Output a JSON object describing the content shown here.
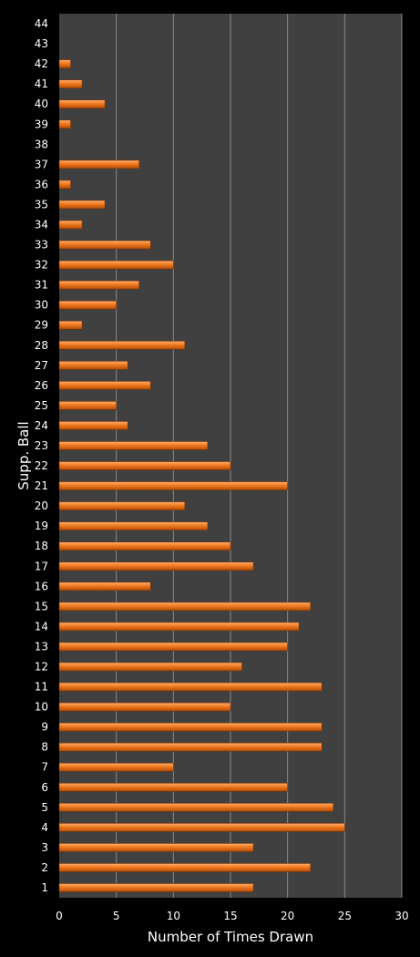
{
  "chart_data": {
    "type": "bar",
    "orientation": "horizontal",
    "xlabel": "Number of Times Drawn",
    "ylabel": "Supp. Ball",
    "xlim": [
      0,
      30
    ],
    "xticks": [
      0,
      5,
      10,
      15,
      20,
      25,
      30
    ],
    "grid": true,
    "legend": "none",
    "colors": {
      "bar": "#f07a20",
      "plot_background": "#404040",
      "page_background": "#000000",
      "gridline": "#8a8a8a",
      "text": "#ffffff"
    },
    "categories": [
      "1",
      "2",
      "3",
      "4",
      "5",
      "6",
      "7",
      "8",
      "9",
      "10",
      "11",
      "12",
      "13",
      "14",
      "15",
      "16",
      "17",
      "18",
      "19",
      "20",
      "21",
      "22",
      "23",
      "24",
      "25",
      "26",
      "27",
      "28",
      "29",
      "30",
      "31",
      "32",
      "33",
      "34",
      "35",
      "36",
      "37",
      "38",
      "39",
      "40",
      "41",
      "42",
      "43",
      "44"
    ],
    "values": [
      17,
      22,
      17,
      25,
      24,
      20,
      10,
      23,
      23,
      15,
      23,
      16,
      20,
      21,
      22,
      8,
      17,
      15,
      13,
      11,
      20,
      15,
      13,
      6,
      5,
      8,
      6,
      11,
      2,
      5,
      7,
      10,
      8,
      2,
      4,
      1,
      7,
      0,
      1,
      4,
      2,
      1,
      0,
      0
    ]
  }
}
